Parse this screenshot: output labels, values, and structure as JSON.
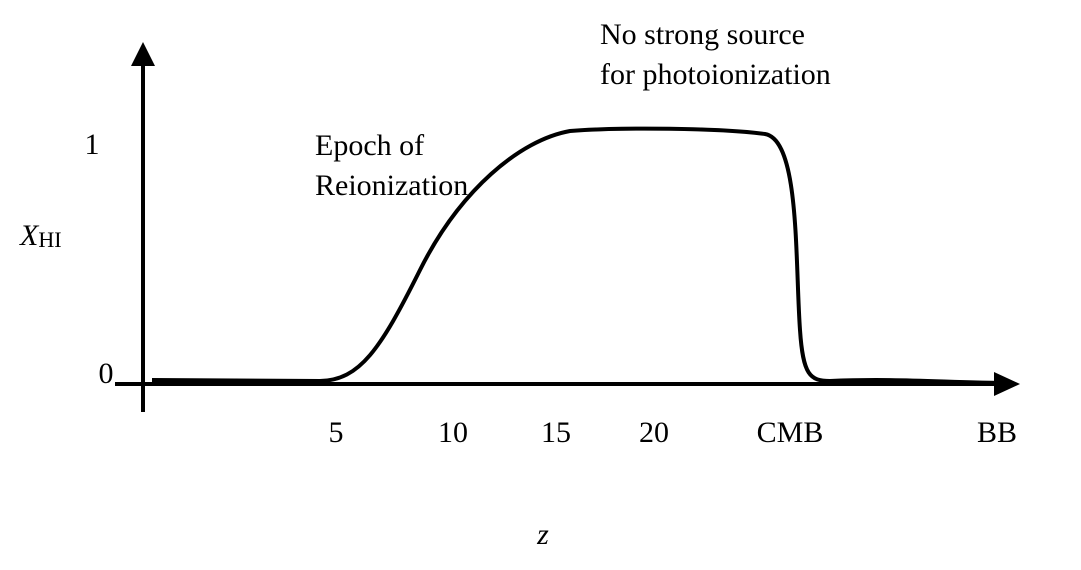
{
  "axes": {
    "y_label": {
      "main": "X",
      "sub": "HI"
    },
    "x_label": "z",
    "y_ticks": [
      "1",
      "0"
    ],
    "x_ticks": [
      "5",
      "10",
      "15",
      "20",
      "CMB",
      "BB"
    ]
  },
  "annotations": {
    "reionization": [
      "Epoch of",
      "Reionization"
    ],
    "no_source": [
      "No strong source",
      "for photoionization"
    ]
  }
}
